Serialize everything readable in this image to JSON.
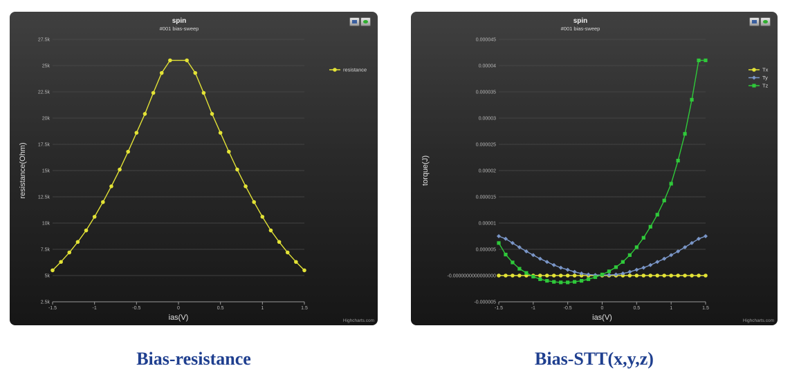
{
  "chart_data": [
    {
      "type": "line",
      "title": "spin",
      "subtitle": "#001 bias-sweep",
      "xlabel": "ias(V)",
      "ylabel": "resistance(Ohm)",
      "xlim": [
        -1.5,
        1.5
      ],
      "ylim": [
        2500,
        27500
      ],
      "x_ticks": [
        "-1.5",
        "-1",
        "-0.5",
        "0",
        "0.5",
        "1",
        "1.5"
      ],
      "y_ticks": [
        "2.5k",
        "5k",
        "7.5k",
        "10k",
        "12.5k",
        "15k",
        "17.5k",
        "20k",
        "22.5k",
        "25k",
        "27.5k"
      ],
      "grid": "horizontal",
      "legend_position": "top-right",
      "credits": "Highcharts.com",
      "x": [
        -1.5,
        -1.4,
        -1.3,
        -1.2,
        -1.1,
        -1.0,
        -0.9,
        -0.8,
        -0.7,
        -0.6,
        -0.5,
        -0.4,
        -0.3,
        -0.2,
        -0.1,
        0.1,
        0.2,
        0.3,
        0.4,
        0.5,
        0.6,
        0.7,
        0.8,
        0.9,
        1.0,
        1.1,
        1.2,
        1.3,
        1.4,
        1.5
      ],
      "series": [
        {
          "name": "resistance",
          "color": "#e3e336",
          "values": [
            5500,
            6300,
            7200,
            8200,
            9300,
            10600,
            12000,
            13500,
            15100,
            16800,
            18600,
            20400,
            22400,
            24300,
            25500,
            25500,
            24300,
            22400,
            20400,
            18600,
            16800,
            15100,
            13500,
            12000,
            10600,
            9300,
            8200,
            7200,
            6300,
            5500
          ]
        }
      ]
    },
    {
      "type": "line",
      "title": "spin",
      "subtitle": "#001 bias-sweep",
      "xlabel": "ias(V)",
      "ylabel": "torque(J)",
      "xlim": [
        -1.5,
        1.5
      ],
      "ylim": [
        -5e-06,
        4.5e-05
      ],
      "x_ticks": [
        "-1.5",
        "-1",
        "-0.5",
        "0",
        "0.5",
        "1",
        "1.5"
      ],
      "y_ticks": [
        "-0.000005",
        "-0.0000000000000000",
        "0.000005",
        "0.00001",
        "0.000015",
        "0.00002",
        "0.000025",
        "0.00003",
        "0.000035",
        "0.00004",
        "0.000045"
      ],
      "grid": "horizontal",
      "legend_position": "top-right",
      "credits": "Highcharts.com",
      "x": [
        -1.5,
        -1.4,
        -1.3,
        -1.2,
        -1.1,
        -1.0,
        -0.9,
        -0.8,
        -0.7,
        -0.6,
        -0.5,
        -0.4,
        -0.3,
        -0.2,
        -0.1,
        0.0,
        0.1,
        0.2,
        0.3,
        0.4,
        0.5,
        0.6,
        0.7,
        0.8,
        0.9,
        1.0,
        1.1,
        1.2,
        1.3,
        1.4,
        1.5
      ],
      "series": [
        {
          "name": "Tx",
          "color": "#e3e336",
          "marker": "circle",
          "values": [
            0,
            0,
            0,
            0,
            0,
            0,
            0,
            0,
            0,
            0,
            0,
            0,
            0,
            0,
            0,
            0,
            0,
            0,
            0,
            0,
            0,
            0,
            0,
            0,
            0,
            0,
            0,
            0,
            0,
            0,
            0
          ]
        },
        {
          "name": "Ty",
          "color": "#7a96c8",
          "marker": "diamond",
          "values": [
            7.5e-06,
            7e-06,
            6.2e-06,
            5.4e-06,
            4.6e-06,
            3.9e-06,
            3.2e-06,
            2.6e-06,
            2e-06,
            1.5e-06,
            1.1e-06,
            7e-07,
            4e-07,
            2e-07,
            1e-07,
            1e-07,
            1e-07,
            2e-07,
            4e-07,
            7e-07,
            1.1e-06,
            1.5e-06,
            2e-06,
            2.6e-06,
            3.2e-06,
            3.9e-06,
            4.6e-06,
            5.4e-06,
            6.2e-06,
            7e-06,
            7.5e-06
          ]
        },
        {
          "name": "Tz",
          "color": "#2fc93a",
          "marker": "square",
          "values": [
            6.2e-06,
            4e-06,
            2.5e-06,
            1.3e-06,
            5e-07,
            -2e-07,
            -7e-07,
            -1e-06,
            -1.2e-06,
            -1.3e-06,
            -1.3e-06,
            -1.2e-06,
            -1e-06,
            -7e-07,
            -3e-07,
            2e-07,
            8e-07,
            1.6e-06,
            2.6e-06,
            3.9e-06,
            5.4e-06,
            7.2e-06,
            9.3e-06,
            1.16e-05,
            1.43e-05,
            1.75e-05,
            2.19e-05,
            2.7e-05,
            3.35e-05,
            4.1e-05,
            4.1e-05
          ]
        }
      ]
    }
  ],
  "captions": {
    "left": "Bias-resistance",
    "right": "Bias-STT(x,y,z)"
  }
}
